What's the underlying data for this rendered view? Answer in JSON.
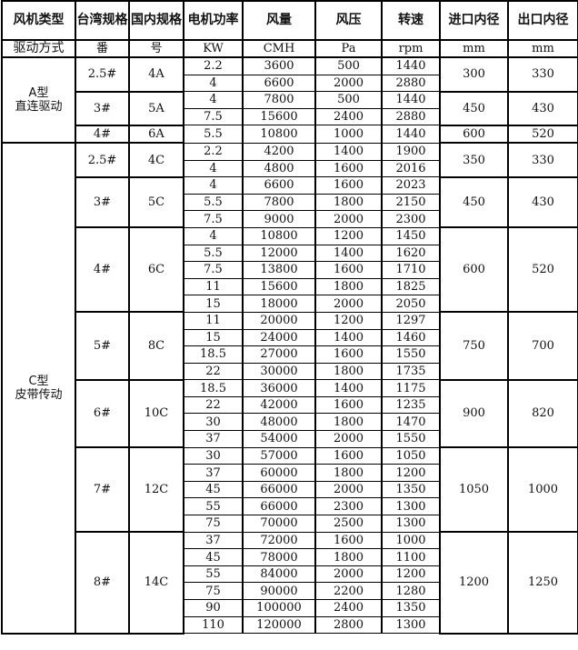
{
  "headers": [
    "风机类型",
    "台湾规格",
    "国内规格",
    "电机功率",
    "风量",
    "风压",
    "转速",
    "进口内径",
    "出口内径"
  ],
  "units": [
    "驱动方式",
    "番",
    "号",
    "KW",
    "CMH",
    "Pa",
    "rpm",
    "mm",
    "mm"
  ],
  "types": [
    {
      "label_line1": "A型",
      "label_line2": "直连驱动",
      "groups": [
        {
          "taiwan": "2.5#",
          "domestic": "4A",
          "inlet": "300",
          "outlet": "330",
          "rows": [
            [
              "2.2",
              "3600",
              "500",
              "1440"
            ],
            [
              "4",
              "6600",
              "2000",
              "2880"
            ]
          ]
        },
        {
          "taiwan": "3#",
          "domestic": "5A",
          "inlet": "450",
          "outlet": "430",
          "rows": [
            [
              "4",
              "7800",
              "500",
              "1440"
            ],
            [
              "7.5",
              "15600",
              "2400",
              "2880"
            ]
          ]
        },
        {
          "taiwan": "4#",
          "domestic": "6A",
          "inlet": "600",
          "outlet": "520",
          "rows": [
            [
              "5.5",
              "10800",
              "1000",
              "1440"
            ]
          ]
        }
      ]
    },
    {
      "label_line1": "C型",
      "label_line2": "皮带传动",
      "groups": [
        {
          "taiwan": "2.5#",
          "domestic": "4C",
          "inlet": "350",
          "outlet": "330",
          "rows": [
            [
              "2.2",
              "4200",
              "1400",
              "1900"
            ],
            [
              "4",
              "4800",
              "1600",
              "2016"
            ]
          ]
        },
        {
          "taiwan": "3#",
          "domestic": "5C",
          "inlet": "450",
          "outlet": "430",
          "rows": [
            [
              "4",
              "6600",
              "1600",
              "2023"
            ],
            [
              "5.5",
              "7800",
              "1800",
              "2150"
            ],
            [
              "7.5",
              "9000",
              "2000",
              "2300"
            ]
          ]
        },
        {
          "taiwan": "4#",
          "domestic": "6C",
          "inlet": "600",
          "outlet": "520",
          "rows": [
            [
              "4",
              "10800",
              "1200",
              "1450"
            ],
            [
              "5.5",
              "12000",
              "1400",
              "1620"
            ],
            [
              "7.5",
              "13800",
              "1600",
              "1710"
            ],
            [
              "11",
              "15600",
              "1800",
              "1825"
            ],
            [
              "15",
              "18000",
              "2000",
              "2050"
            ]
          ]
        },
        {
          "taiwan": "5#",
          "domestic": "8C",
          "inlet": "750",
          "outlet": "700",
          "rows": [
            [
              "11",
              "20000",
              "1200",
              "1297"
            ],
            [
              "15",
              "24000",
              "1400",
              "1460"
            ],
            [
              "18.5",
              "27000",
              "1600",
              "1550"
            ],
            [
              "22",
              "30000",
              "1800",
              "1735"
            ]
          ]
        },
        {
          "taiwan": "6#",
          "domestic": "10C",
          "inlet": "900",
          "outlet": "820",
          "rows": [
            [
              "18.5",
              "36000",
              "1400",
              "1175"
            ],
            [
              "22",
              "42000",
              "1600",
              "1235"
            ],
            [
              "30",
              "48000",
              "1800",
              "1470"
            ],
            [
              "37",
              "54000",
              "2000",
              "1550"
            ]
          ]
        },
        {
          "taiwan": "7#",
          "domestic": "12C",
          "inlet": "1050",
          "outlet": "1000",
          "rows": [
            [
              "30",
              "57000",
              "1600",
              "1050"
            ],
            [
              "37",
              "60000",
              "1800",
              "1200"
            ],
            [
              "45",
              "66000",
              "2000",
              "1350"
            ],
            [
              "55",
              "66000",
              "2300",
              "1300"
            ],
            [
              "75",
              "70000",
              "2500",
              "1300"
            ]
          ]
        },
        {
          "taiwan": "8#",
          "domestic": "14C",
          "inlet": "1200",
          "outlet": "1250",
          "rows": [
            [
              "37",
              "72000",
              "1600",
              "1000"
            ],
            [
              "45",
              "78000",
              "1800",
              "1100"
            ],
            [
              "55",
              "84000",
              "2000",
              "1200"
            ],
            [
              "75",
              "90000",
              "2200",
              "1280"
            ],
            [
              "90",
              "100000",
              "2400",
              "1350"
            ],
            [
              "110",
              "120000",
              "2800",
              "1300"
            ]
          ]
        }
      ]
    }
  ]
}
